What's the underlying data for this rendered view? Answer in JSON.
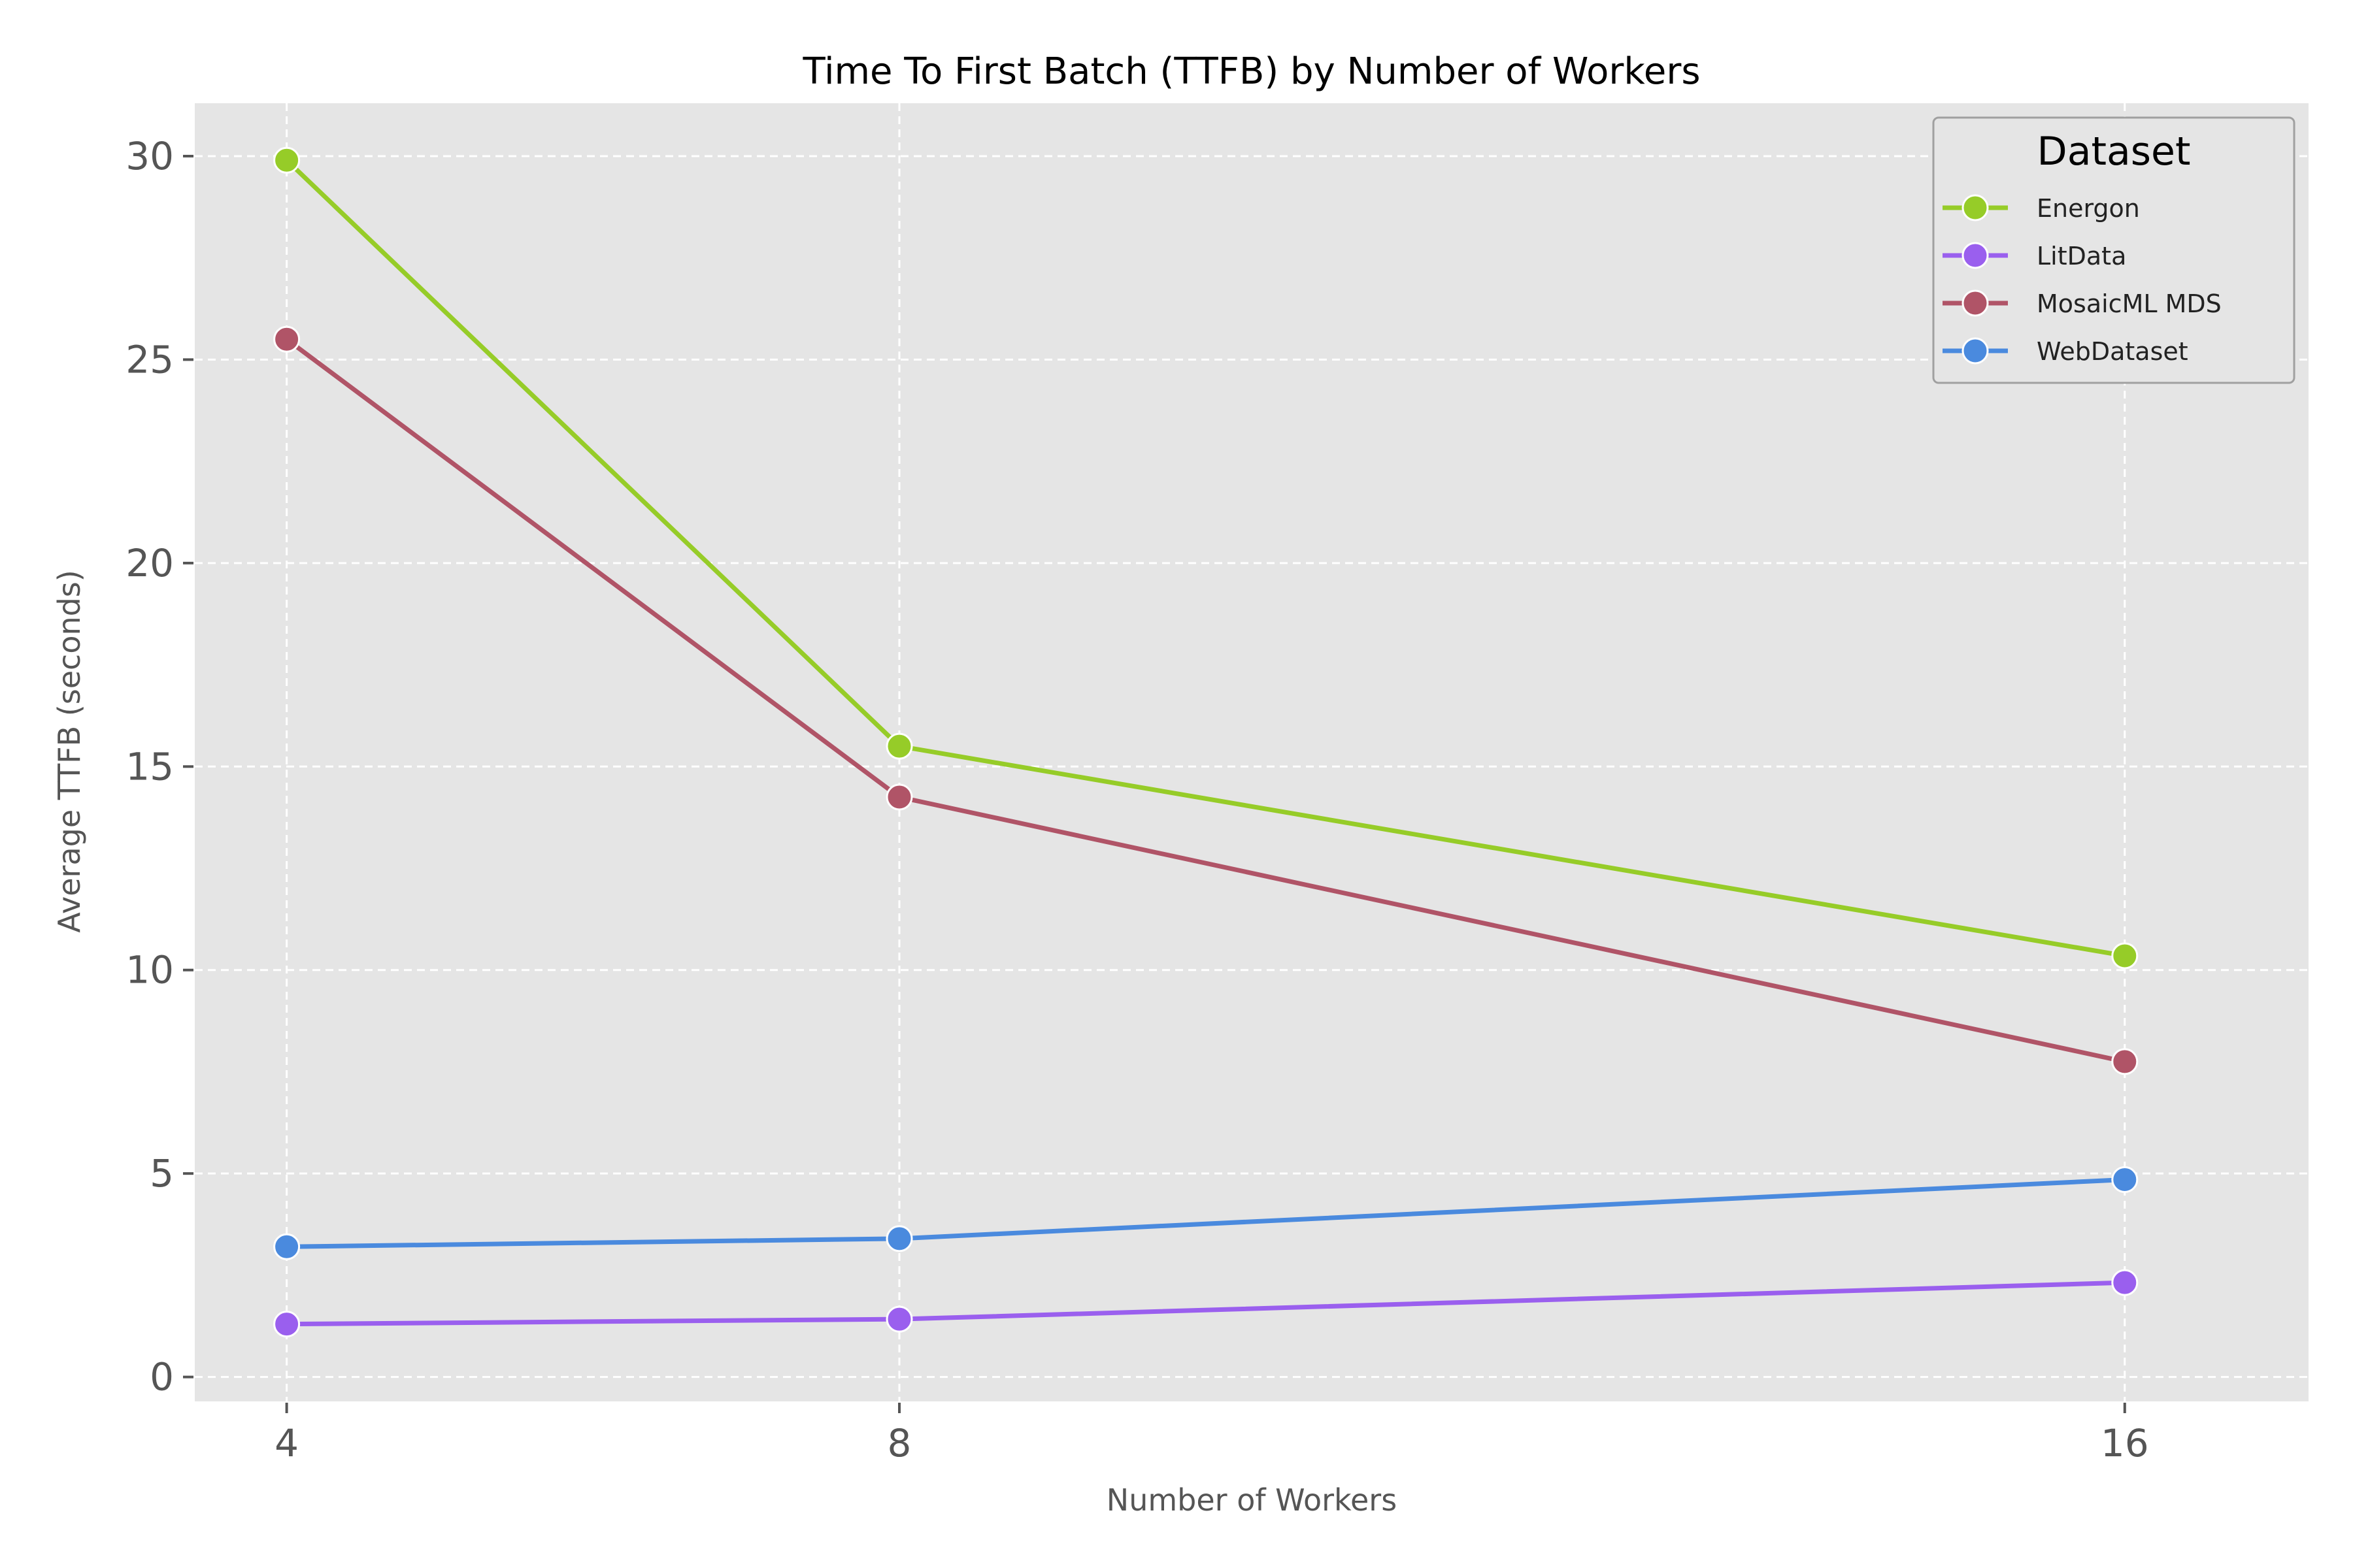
{
  "chart_data": {
    "type": "line",
    "title": "Time To First Batch (TTFB) by Number of Workers",
    "xlabel": "Number of Workers",
    "ylabel": "Average TTFB (seconds)",
    "x": [
      4,
      8,
      16
    ],
    "x_tick_labels": [
      "4",
      "8",
      "16"
    ],
    "xlim": [
      3.4,
      17.2
    ],
    "ylim": [
      -0.6,
      31.3
    ],
    "y_ticks": [
      0,
      5,
      10,
      15,
      20,
      25,
      30
    ],
    "y_tick_labels": [
      "0",
      "5",
      "10",
      "15",
      "20",
      "25",
      "30"
    ],
    "grid": true,
    "legend": {
      "title": "Dataset",
      "placement": "top-right"
    },
    "series": [
      {
        "name": "Energon",
        "color": "#96cc28",
        "values": [
          29.9,
          15.5,
          10.35
        ]
      },
      {
        "name": "LitData",
        "color": "#9a5fee",
        "values": [
          1.3,
          1.42,
          2.32
        ]
      },
      {
        "name": "MosaicML MDS",
        "color": "#b05467",
        "values": [
          25.5,
          14.25,
          7.75
        ]
      },
      {
        "name": "WebDataset",
        "color": "#4a8ade",
        "values": [
          3.2,
          3.4,
          4.85
        ]
      }
    ]
  }
}
